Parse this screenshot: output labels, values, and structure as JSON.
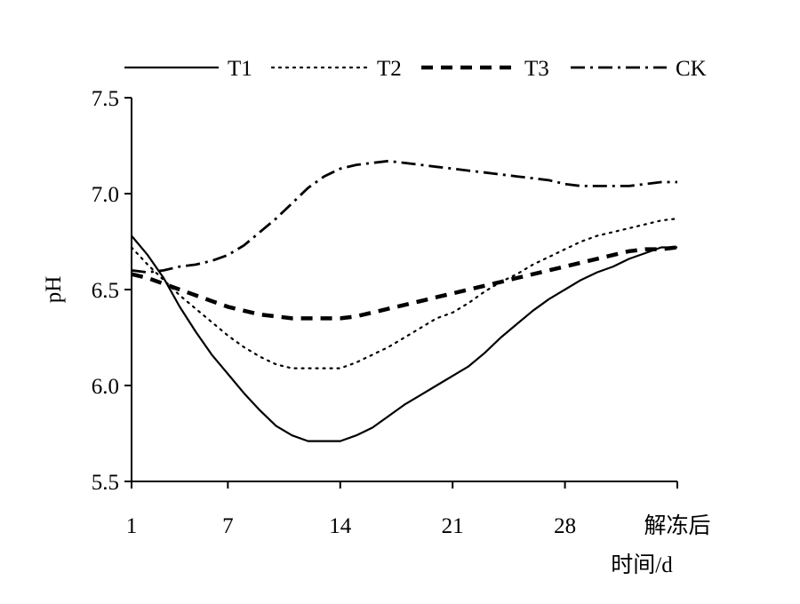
{
  "chart_data": {
    "type": "line",
    "title": "",
    "xlabel": "时间/d",
    "ylabel": "pH",
    "categories": [
      "1",
      "7",
      "14",
      "21",
      "28",
      "解冻后"
    ],
    "x_positions": [
      1,
      7,
      14,
      21,
      28,
      35
    ],
    "ylim": [
      5.5,
      7.5
    ],
    "yticks": [
      "5.5",
      "6.0",
      "6.5",
      "7.0",
      "7.5"
    ],
    "ytick_values": [
      5.5,
      6.0,
      6.5,
      7.0,
      7.5
    ],
    "xlim": [
      1,
      35
    ],
    "grid": false,
    "legend_position": "top",
    "series": [
      {
        "name": "T1",
        "style": "solid",
        "x": [
          1,
          2,
          3,
          4,
          5,
          6,
          7,
          8,
          9,
          10,
          11,
          12,
          13,
          14,
          15,
          16,
          17,
          18,
          19,
          20,
          21,
          22,
          23,
          24,
          25,
          26,
          27,
          28,
          29,
          30,
          31,
          32,
          33,
          34,
          35
        ],
        "values": [
          6.78,
          6.68,
          6.56,
          6.41,
          6.28,
          6.16,
          6.06,
          5.96,
          5.87,
          5.79,
          5.74,
          5.71,
          5.71,
          5.71,
          5.74,
          5.78,
          5.84,
          5.9,
          5.95,
          6.0,
          6.05,
          6.1,
          6.17,
          6.25,
          6.32,
          6.39,
          6.45,
          6.5,
          6.55,
          6.59,
          6.62,
          6.66,
          6.69,
          6.72,
          6.72
        ]
      },
      {
        "name": "T2",
        "style": "dotted",
        "x": [
          1,
          2,
          3,
          4,
          5,
          6,
          7,
          8,
          9,
          10,
          11,
          12,
          13,
          14,
          15,
          16,
          17,
          18,
          19,
          20,
          21,
          22,
          23,
          24,
          25,
          26,
          27,
          28,
          29,
          30,
          31,
          32,
          33,
          34,
          35
        ],
        "values": [
          6.72,
          6.63,
          6.55,
          6.47,
          6.4,
          6.33,
          6.26,
          6.2,
          6.15,
          6.11,
          6.09,
          6.09,
          6.09,
          6.09,
          6.12,
          6.16,
          6.2,
          6.25,
          6.3,
          6.35,
          6.38,
          6.43,
          6.49,
          6.54,
          6.58,
          6.63,
          6.67,
          6.71,
          6.75,
          6.78,
          6.8,
          6.82,
          6.84,
          6.86,
          6.87
        ]
      },
      {
        "name": "T3",
        "style": "dashed",
        "x": [
          1,
          2,
          3,
          4,
          5,
          6,
          7,
          8,
          9,
          10,
          11,
          12,
          13,
          14,
          15,
          16,
          17,
          18,
          19,
          20,
          21,
          22,
          23,
          24,
          25,
          26,
          27,
          28,
          29,
          30,
          31,
          32,
          33,
          34,
          35
        ],
        "values": [
          6.58,
          6.56,
          6.53,
          6.5,
          6.47,
          6.44,
          6.41,
          6.39,
          6.37,
          6.36,
          6.35,
          6.35,
          6.35,
          6.35,
          6.36,
          6.38,
          6.4,
          6.42,
          6.44,
          6.46,
          6.48,
          6.5,
          6.52,
          6.54,
          6.56,
          6.58,
          6.6,
          6.62,
          6.64,
          6.66,
          6.68,
          6.7,
          6.71,
          6.71,
          6.72
        ]
      },
      {
        "name": "CK",
        "style": "dashdot",
        "x": [
          1,
          2,
          3,
          4,
          5,
          6,
          7,
          8,
          9,
          10,
          11,
          12,
          13,
          14,
          15,
          16,
          17,
          18,
          19,
          20,
          21,
          22,
          23,
          24,
          25,
          26,
          27,
          28,
          29,
          30,
          31,
          32,
          33,
          34,
          35
        ],
        "values": [
          6.6,
          6.59,
          6.6,
          6.62,
          6.63,
          6.65,
          6.68,
          6.73,
          6.8,
          6.87,
          6.95,
          7.03,
          7.09,
          7.13,
          7.15,
          7.16,
          7.17,
          7.16,
          7.15,
          7.14,
          7.13,
          7.12,
          7.11,
          7.1,
          7.09,
          7.08,
          7.07,
          7.05,
          7.04,
          7.04,
          7.04,
          7.04,
          7.05,
          7.06,
          7.06
        ]
      }
    ]
  }
}
